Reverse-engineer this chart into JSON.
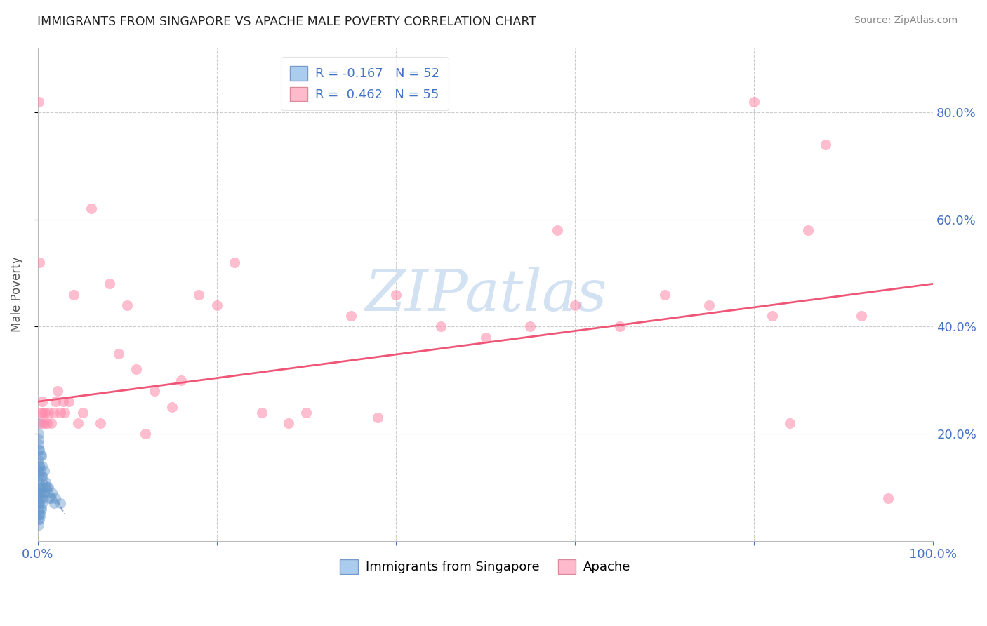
{
  "title": "IMMIGRANTS FROM SINGAPORE VS APACHE MALE POVERTY CORRELATION CHART",
  "source": "Source: ZipAtlas.com",
  "axis_color": "#4472c4",
  "ylabel": "Male Poverty",
  "xlim": [
    0.0,
    1.0
  ],
  "ylim": [
    0.0,
    0.92
  ],
  "watermark_text": "ZIPatlas",
  "watermark_color": "#ccddf0",
  "legend_line1": "R = -0.167   N = 52",
  "legend_line2": "R =  0.462   N = 55",
  "blue_dot_color": "#6699cc",
  "pink_dot_color": "#ff88aa",
  "trend_blue_color": "#7799cc",
  "trend_pink_color": "#ee5577",
  "grid_color": "#cccccc",
  "blue_scatter_x": [
    0.0005,
    0.0008,
    0.001,
    0.001,
    0.001,
    0.001,
    0.001,
    0.001,
    0.001,
    0.001,
    0.001,
    0.001,
    0.001,
    0.001,
    0.001,
    0.0015,
    0.0015,
    0.0015,
    0.002,
    0.002,
    0.002,
    0.002,
    0.002,
    0.002,
    0.0025,
    0.003,
    0.003,
    0.003,
    0.003,
    0.003,
    0.004,
    0.004,
    0.004,
    0.004,
    0.005,
    0.005,
    0.005,
    0.006,
    0.006,
    0.007,
    0.007,
    0.008,
    0.009,
    0.01,
    0.011,
    0.012,
    0.013,
    0.015,
    0.016,
    0.018,
    0.02,
    0.025
  ],
  "blue_scatter_y": [
    0.04,
    0.06,
    0.03,
    0.05,
    0.07,
    0.08,
    0.1,
    0.12,
    0.13,
    0.15,
    0.17,
    0.18,
    0.19,
    0.2,
    0.22,
    0.05,
    0.09,
    0.14,
    0.04,
    0.07,
    0.09,
    0.11,
    0.14,
    0.17,
    0.06,
    0.05,
    0.08,
    0.1,
    0.13,
    0.16,
    0.06,
    0.09,
    0.12,
    0.16,
    0.07,
    0.1,
    0.14,
    0.08,
    0.12,
    0.09,
    0.13,
    0.1,
    0.11,
    0.1,
    0.09,
    0.1,
    0.08,
    0.08,
    0.09,
    0.07,
    0.08,
    0.07
  ],
  "pink_scatter_x": [
    0.001,
    0.002,
    0.003,
    0.004,
    0.005,
    0.006,
    0.007,
    0.008,
    0.01,
    0.012,
    0.015,
    0.018,
    0.02,
    0.022,
    0.025,
    0.028,
    0.03,
    0.035,
    0.04,
    0.045,
    0.05,
    0.06,
    0.07,
    0.08,
    0.09,
    0.1,
    0.11,
    0.12,
    0.13,
    0.15,
    0.16,
    0.18,
    0.2,
    0.22,
    0.25,
    0.28,
    0.3,
    0.35,
    0.38,
    0.4,
    0.45,
    0.5,
    0.55,
    0.58,
    0.6,
    0.65,
    0.7,
    0.75,
    0.8,
    0.82,
    0.84,
    0.86,
    0.88,
    0.92,
    0.95
  ],
  "pink_scatter_y": [
    0.82,
    0.52,
    0.24,
    0.22,
    0.26,
    0.24,
    0.22,
    0.24,
    0.22,
    0.24,
    0.22,
    0.24,
    0.26,
    0.28,
    0.24,
    0.26,
    0.24,
    0.26,
    0.46,
    0.22,
    0.24,
    0.62,
    0.22,
    0.48,
    0.35,
    0.44,
    0.32,
    0.2,
    0.28,
    0.25,
    0.3,
    0.46,
    0.44,
    0.52,
    0.24,
    0.22,
    0.24,
    0.42,
    0.23,
    0.46,
    0.4,
    0.38,
    0.4,
    0.58,
    0.44,
    0.4,
    0.46,
    0.44,
    0.82,
    0.42,
    0.22,
    0.58,
    0.74,
    0.42,
    0.08
  ],
  "pink_trend_x0": 0.0,
  "pink_trend_y0": 0.26,
  "pink_trend_x1": 1.0,
  "pink_trend_y1": 0.48,
  "blue_trend_x0": 0.0,
  "blue_trend_y0": 0.14,
  "blue_trend_x1": 0.03,
  "blue_trend_y1": 0.05
}
